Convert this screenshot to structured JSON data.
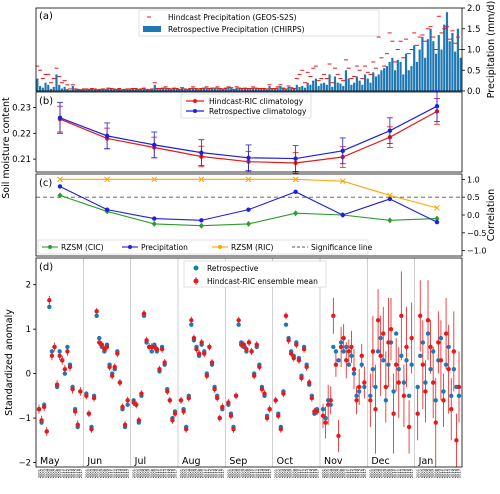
{
  "chart_data": [
    {
      "panel": "(a)",
      "type": "bar",
      "ylabel": "Precipitation (mm/d)",
      "ylim": [
        0,
        2.0
      ],
      "yticks": [
        0,
        0.5,
        1.0,
        1.5,
        2.0
      ],
      "ytick_labels": [
        "0.0",
        "0.5",
        "1.0",
        "1.5",
        "2.0"
      ],
      "legend_position": "top-center",
      "series": [
        {
          "name": "Hindcast Precipitation (GEOS-S2S)",
          "style": "marker",
          "color": "#e41a1c"
        },
        {
          "name": "Retrospective Precipitation (CHIRPS)",
          "style": "bar",
          "color": "#1f77b4"
        }
      ],
      "bar_values": [
        0.3,
        0.12,
        0.08,
        0.2,
        0.15,
        0.05,
        0.1,
        0.4,
        0.15,
        0.06,
        0.1,
        0.05,
        0.02,
        0.12,
        0.05,
        0.03,
        0.02,
        0.04,
        0.04,
        0.03,
        0.05,
        0.04,
        0.02,
        0.03,
        0.04,
        0.03,
        0.06,
        0.05,
        0.04,
        0.03,
        0.05,
        0.02,
        0.03,
        0.04,
        0.04,
        0.05,
        0.05,
        0.03,
        0.04,
        0.06,
        0.03,
        0.02,
        0.04,
        0.15,
        0.05,
        0.05,
        0.06,
        0.08,
        0.05,
        0.04,
        0.06,
        0.05,
        0.03,
        0.07,
        0.04,
        0.03,
        0.05,
        0.08,
        0.05,
        0.04,
        0.05,
        0.06,
        0.08,
        0.05,
        0.06,
        0.06,
        0.08,
        0.05,
        0.04,
        0.06,
        0.09,
        0.07,
        0.03,
        0.08,
        0.06,
        0.05,
        0.06,
        0.05,
        0.05,
        0.08,
        0.06,
        0.05,
        0.05,
        0.05,
        0.04,
        0.12,
        0.05,
        0.05,
        0.08,
        0.12,
        0.06,
        0.04,
        0.1,
        0.07,
        0.05,
        0.15,
        0.1,
        0.12,
        0.08,
        0.2,
        0.15,
        0.25,
        0.3,
        0.12,
        0.18,
        0.2,
        0.15,
        0.4,
        0.1,
        0.35,
        0.2,
        0.18,
        0.12,
        0.5,
        0.3,
        0.15,
        0.2,
        0.35,
        0.25,
        0.15,
        0.4,
        0.3,
        0.2,
        0.45,
        0.35,
        0.4,
        0.5,
        0.55,
        0.6,
        0.7,
        0.8,
        0.5,
        0.75,
        0.7,
        0.4,
        0.9,
        0.5,
        0.6,
        1.1,
        0.7,
        1.0,
        1.3,
        0.8,
        1.25,
        1.5,
        1.2,
        0.9,
        1.35,
        1.0,
        1.6,
        1.9,
        1.2,
        1.4,
        0.95,
        1.5,
        0.8
      ],
      "marker_values": [
        0.6,
        0.5,
        0.3,
        0.4,
        0.4,
        0.2,
        0.3,
        0.55,
        0.35,
        0.2,
        0.25,
        0.15,
        0.05,
        0.15,
        0.05,
        0.04,
        0.03,
        0.05,
        0.05,
        0.04,
        0.06,
        0.05,
        0.03,
        0.04,
        0.05,
        0.04,
        0.07,
        0.06,
        0.05,
        0.04,
        0.06,
        0.03,
        0.04,
        0.05,
        0.05,
        0.06,
        0.06,
        0.04,
        0.05,
        0.07,
        0.04,
        0.03,
        0.05,
        0.2,
        0.06,
        0.06,
        0.07,
        0.1,
        0.06,
        0.05,
        0.07,
        0.06,
        0.04,
        0.08,
        0.05,
        0.04,
        0.06,
        0.1,
        0.06,
        0.05,
        0.06,
        0.07,
        0.1,
        0.06,
        0.07,
        0.07,
        0.1,
        0.06,
        0.05,
        0.07,
        0.1,
        0.08,
        0.04,
        0.1,
        0.07,
        0.06,
        0.07,
        0.06,
        0.06,
        0.1,
        0.07,
        0.06,
        0.06,
        0.06,
        0.05,
        0.15,
        0.06,
        0.06,
        0.1,
        0.15,
        0.07,
        0.05,
        0.12,
        0.08,
        0.06,
        0.3,
        0.4,
        0.5,
        0.2,
        0.45,
        0.35,
        0.55,
        0.6,
        0.25,
        0.3,
        0.4,
        0.3,
        0.65,
        0.2,
        0.55,
        0.4,
        0.3,
        0.25,
        0.75,
        0.55,
        0.3,
        0.35,
        0.6,
        0.5,
        0.3,
        0.6,
        0.45,
        0.4,
        0.7,
        0.55,
        1.3,
        0.8,
        0.6,
        0.9,
        1.4,
        1.2,
        0.7,
        1.0,
        1.2,
        0.8,
        1.25,
        0.9,
        1.0,
        1.4,
        1.1,
        1.3,
        1.35,
        1.2,
        1.5,
        1.55,
        1.3,
        1.0,
        1.8,
        1.4,
        1.5,
        1.55,
        1.25,
        1.45,
        1.15,
        1.3,
        1.0
      ]
    },
    {
      "panel": "(b)",
      "type": "line",
      "ylabel": "Soil moisture content",
      "ylim": [
        0.205,
        0.236
      ],
      "yticks": [
        0.21,
        0.22,
        0.23
      ],
      "ytick_labels": [
        "0.21",
        "0.22",
        "0.23"
      ],
      "legend_position": "top-center",
      "series": [
        {
          "name": "Hindcast-RIC climatology",
          "color": "#e41a1c",
          "values": [
            0.2255,
            0.218,
            0.2145,
            0.211,
            0.209,
            0.2085,
            0.2108,
            0.2185,
            0.2285
          ],
          "errors": [
            0.005,
            0.004,
            0.004,
            0.004,
            0.004,
            0.004,
            0.004,
            0.004,
            0.005
          ]
        },
        {
          "name": "Retrospective climatology",
          "color": "#1f1fe0",
          "values": [
            0.226,
            0.219,
            0.2155,
            0.2125,
            0.2105,
            0.2102,
            0.2132,
            0.221,
            0.2305
          ],
          "errors": [
            0.006,
            0.005,
            0.005,
            0.005,
            0.005,
            0.005,
            0.005,
            0.005,
            0.006
          ]
        }
      ]
    },
    {
      "panel": "(c)",
      "type": "line",
      "ylabel": "Correlation",
      "ylim": [
        -1.15,
        1.15
      ],
      "yticks": [
        -1.0,
        -0.5,
        0.0,
        0.5,
        1.0
      ],
      "ytick_labels": [
        "−1.0",
        "−0.5",
        "0.0",
        "0.5",
        "1.0"
      ],
      "legend_position": "bottom",
      "significance_line": 0.5,
      "series": [
        {
          "name": "RZSM (CIC)",
          "color": "#2a9d2a",
          "marker": "diamond",
          "values": [
            0.55,
            0.1,
            -0.25,
            -0.3,
            -0.25,
            0.05,
            0.0,
            -0.15,
            -0.1
          ]
        },
        {
          "name": "Precipitation",
          "color": "#1f1fe0",
          "marker": "circle",
          "values": [
            0.8,
            0.15,
            -0.1,
            -0.15,
            0.15,
            0.65,
            0.0,
            0.45,
            -0.2
          ]
        },
        {
          "name": "RZSM (RIC)",
          "color": "#ffa500",
          "marker": "x",
          "values": [
            1.0,
            1.0,
            1.0,
            1.0,
            1.0,
            1.0,
            0.95,
            0.55,
            0.2
          ]
        },
        {
          "name": "Significance line",
          "color": "#555555",
          "style": "dashed"
        }
      ]
    },
    {
      "panel": "(d)",
      "type": "scatter",
      "ylabel": "Standardized anomaly",
      "ylim": [
        -2.1,
        2.6
      ],
      "yticks": [
        -2,
        -1,
        0,
        1,
        2
      ],
      "ytick_labels": [
        "−2",
        "−1",
        "0",
        "1",
        "2"
      ],
      "legend_position": "top-left",
      "months": [
        "May",
        "Jun",
        "Jul",
        "Aug",
        "Sep",
        "Oct",
        "Nov",
        "Dec",
        "Jan"
      ],
      "years": [
        "2001",
        "2002",
        "2003",
        "2004",
        "2005",
        "2006",
        "2007",
        "2008",
        "2009",
        "2010",
        "2011",
        "2012",
        "2013",
        "2014",
        "2015",
        "2016",
        "2017"
      ],
      "series": [
        {
          "name": "Retrospective",
          "color": "#1f77b4",
          "marker": "circle"
        },
        {
          "name": "Hindcast-RIC ensemble mean",
          "color": "#e41a1c",
          "marker": "circle-errorbar"
        }
      ],
      "retrospective": [
        [
          -0.8,
          -1.1,
          -0.7,
          -1.3,
          1.5,
          0.5,
          0.6,
          -0.3,
          0.5,
          0.3,
          0.0,
          0.6,
          0.2,
          -0.3,
          -0.8,
          -1.2,
          -0.4
        ],
        [
          -0.45,
          -0.9,
          -1.2,
          -0.5,
          1.3,
          0.8,
          0.6,
          0.5,
          0.65,
          0.2,
          0.0,
          0.1,
          0.5,
          -0.2,
          -0.8,
          -1.2,
          -0.7
        ],
        [
          -0.6,
          -0.7,
          -1.1,
          -0.5,
          1.3,
          0.7,
          0.6,
          0.5,
          0.65,
          0.5,
          0.05,
          0.6,
          0.2,
          -0.35,
          -0.6,
          -1.0,
          -0.85
        ],
        [
          -0.6,
          -0.8,
          -1.2,
          -0.5,
          1.1,
          0.75,
          0.6,
          0.4,
          0.65,
          0.5,
          0.0,
          0.6,
          0.2,
          -0.3,
          -0.5,
          -1.0,
          -0.8
        ],
        [
          -0.7,
          -0.9,
          -1.2,
          -0.5,
          1.1,
          0.7,
          0.6,
          0.5,
          0.7,
          0.5,
          0.0,
          0.6,
          0.2,
          -0.3,
          -0.5,
          -0.95,
          -0.8
        ],
        [
          -0.6,
          -0.9,
          -1.2,
          -0.4,
          1.1,
          0.8,
          0.5,
          0.4,
          0.7,
          0.35,
          -0.05,
          0.6,
          0.2,
          -0.25,
          -0.5,
          -0.9,
          -0.8
        ],
        [
          -0.8,
          -1.0,
          -0.6,
          -0.7,
          0.6,
          0.5,
          0.3,
          0.7,
          0.5,
          0.6,
          0.2,
          0.4,
          0.0,
          -0.5,
          -0.4,
          0.2,
          -0.3
        ],
        [
          -0.5,
          0.1,
          -0.3,
          0.5,
          0.8,
          0.3,
          -0.6,
          0.2,
          0.7,
          -0.4,
          0.9,
          0.1,
          0.4,
          -0.2,
          0.3,
          -0.5,
          0.2
        ],
        [
          -0.3,
          0.4,
          0.7,
          -0.2,
          0.9,
          0.1,
          0.5,
          -0.6,
          0.3,
          0.8,
          -0.4,
          0.2,
          0.6,
          -0.5,
          0.1,
          -0.3,
          -0.5
        ]
      ],
      "hindcast": [
        [
          -0.8,
          -1.05,
          -0.75,
          -1.3,
          1.65,
          0.4,
          0.6,
          -0.25,
          0.4,
          0.3,
          0.1,
          0.5,
          0.15,
          -0.35,
          -0.85,
          -1.15,
          -0.4
        ],
        [
          -0.5,
          -0.9,
          -1.25,
          -0.55,
          1.4,
          0.7,
          0.65,
          0.55,
          0.6,
          0.15,
          -0.05,
          0.15,
          0.45,
          -0.2,
          -0.75,
          -1.15,
          -0.6
        ],
        [
          -0.65,
          -0.7,
          -1.05,
          -0.45,
          1.35,
          0.75,
          0.6,
          0.6,
          0.6,
          0.55,
          0.1,
          0.55,
          0.25,
          -0.4,
          -0.6,
          -1.05,
          -0.9
        ],
        [
          -0.6,
          -0.85,
          -1.25,
          -0.55,
          1.2,
          0.8,
          0.55,
          0.45,
          0.7,
          0.45,
          -0.05,
          0.6,
          0.25,
          -0.35,
          -0.55,
          -1.0,
          -0.75
        ],
        [
          -0.65,
          -0.95,
          -1.25,
          -0.5,
          1.2,
          0.65,
          0.65,
          0.55,
          0.7,
          0.5,
          -0.05,
          0.65,
          0.15,
          -0.35,
          -0.45,
          -1.0,
          -0.8
        ],
        [
          -0.6,
          -0.95,
          -1.25,
          -0.45,
          1.3,
          0.75,
          0.45,
          0.35,
          0.65,
          0.3,
          -0.1,
          0.55,
          0.15,
          -0.2,
          -0.55,
          -0.85,
          -0.85
        ],
        [
          -0.95,
          -1.1,
          -0.7,
          -0.6,
          1.3,
          0.2,
          -1.4,
          0.6,
          0.8,
          0.3,
          0.5,
          0.6,
          0.1,
          -0.6,
          -0.3,
          0.4,
          -0.2
        ],
        [
          -0.6,
          0.5,
          -0.8,
          1.2,
          0.4,
          0.9,
          -0.3,
          0.7,
          1.0,
          -0.9,
          0.2,
          -0.2,
          1.3,
          -0.5,
          0.6,
          -1.2,
          0.8
        ],
        [
          -0.9,
          1.3,
          0.2,
          -0.4,
          1.2,
          0.6,
          -0.2,
          -1.1,
          0.7,
          0.3,
          -0.6,
          0.9,
          0.1,
          -0.8,
          0.5,
          -1.5,
          -0.3
        ]
      ],
      "hindcast_errors_by_month": [
        0.1,
        0.08,
        0.08,
        0.08,
        0.08,
        0.08,
        0.45,
        1.0,
        1.0
      ]
    }
  ]
}
